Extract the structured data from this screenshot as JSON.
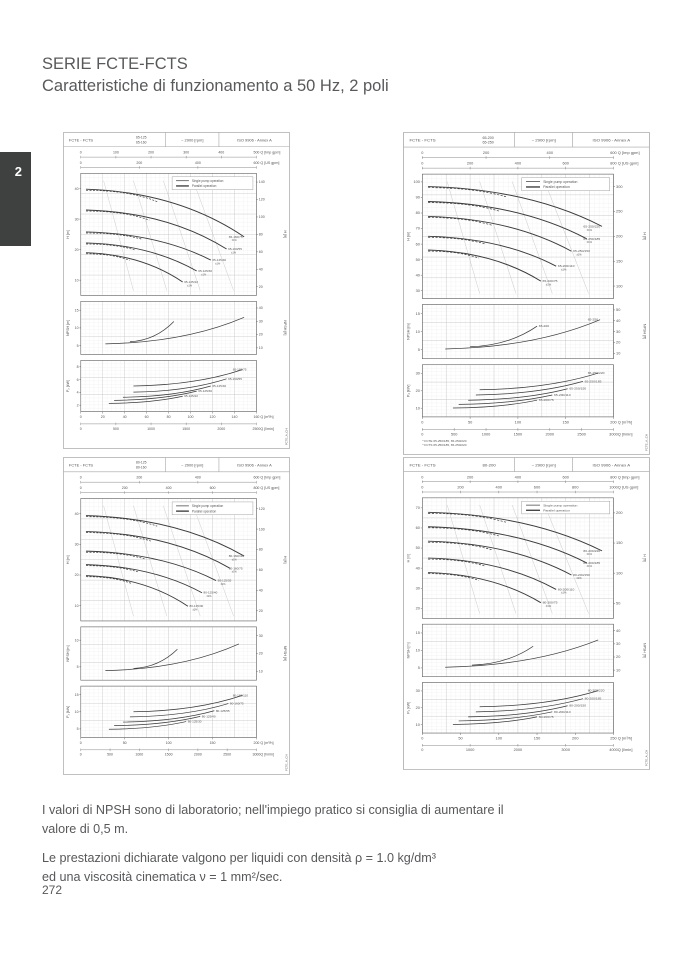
{
  "page": {
    "tab_number": "2",
    "title": "SERIE FCTE-FCTS",
    "subtitle": "Caratteristiche di funzionamento a 50 Hz, 2 poli",
    "notes": {
      "npsh": "I valori di NPSH sono di laboratorio; nell'impiego pratico si consiglia di aumentare il valore di 0,5 m.",
      "density1": "Le prestazioni dichiarate valgono per liquidi con densità ρ = 1.0 kg/dm³",
      "density2": "ed una viscosità cinematica ν = 1 mm²/sec."
    },
    "page_number": "272"
  },
  "charts": [
    {
      "header": {
        "series": "FCTE - FCTS",
        "sizes": [
          "65-125",
          "65-160"
        ],
        "speed": "~ 2900 [rpm]",
        "standard": "ISO 9906 - Annex A"
      },
      "legend": [
        "Single pump operation",
        "Parallel operation"
      ],
      "top_axes": [
        {
          "label": "Q [Imp gpm]",
          "ticks": [
            "0",
            "100",
            "200",
            "300",
            "400",
            "500"
          ]
        },
        {
          "label": "Q [US gpm]",
          "ticks": [
            "0",
            "200",
            "400",
            "600"
          ]
        }
      ],
      "head_panel": {
        "left_label": "H [m]",
        "left_ticks": [
          "40",
          "30",
          "20",
          "10"
        ],
        "right_label": "H [ft]",
        "right_ticks": [
          "140",
          "120",
          "100",
          "80",
          "60",
          "40",
          "20"
        ],
        "tolerance": "±1%",
        "curves": [
          {
            "x0": 0.03,
            "y0": 0.13,
            "x1": 0.93,
            "y1": 0.52,
            "label": "65-160/75"
          },
          {
            "x0": 0.03,
            "y0": 0.3,
            "x1": 0.83,
            "y1": 0.62,
            "label": "65-160/55"
          },
          {
            "x0": 0.03,
            "y0": 0.48,
            "x1": 0.74,
            "y1": 0.71,
            "label": "65-125/40"
          },
          {
            "x0": 0.03,
            "y0": 0.57,
            "x1": 0.66,
            "y1": 0.8,
            "label": "65-125/30"
          },
          {
            "x0": 0.03,
            "y0": 0.65,
            "x1": 0.58,
            "y1": 0.89,
            "label": "65-125/22"
          }
        ]
      },
      "npsh_panel": {
        "left_label": "NPSH [m]",
        "left_ticks": [
          "15",
          "10",
          "5"
        ],
        "right_label": "NPSH [ft]",
        "right_ticks": [
          "40",
          "30",
          "20",
          "10"
        ],
        "curves": [
          {
            "x0": 0.14,
            "y0": 0.8,
            "x1": 0.93,
            "y1": 0.3,
            "label": ""
          },
          {
            "x0": 0.28,
            "y0": 0.76,
            "x1": 0.53,
            "y1": 0.38,
            "label": ""
          }
        ]
      },
      "power_panel": {
        "left_label": "P₂ [kW]",
        "left_ticks": [
          "8",
          "6",
          "4",
          "2"
        ],
        "curves": [
          {
            "x0": 0.3,
            "y0": 0.5,
            "x1": 0.92,
            "y1": 0.18,
            "label": "65-160/75"
          },
          {
            "x0": 0.3,
            "y0": 0.62,
            "x1": 0.83,
            "y1": 0.36,
            "label": "65-160/55"
          },
          {
            "x0": 0.24,
            "y0": 0.72,
            "x1": 0.74,
            "y1": 0.5,
            "label": "65-125/40"
          },
          {
            "x0": 0.19,
            "y0": 0.78,
            "x1": 0.66,
            "y1": 0.6,
            "label": "65-125/30"
          },
          {
            "x0": 0.16,
            "y0": 0.84,
            "x1": 0.58,
            "y1": 0.7,
            "label": "65-125/22"
          }
        ]
      },
      "bottom_axes": [
        {
          "label": "Q [m³/h]",
          "ticks": [
            "0",
            "20",
            "40",
            "60",
            "80",
            "100",
            "120",
            "140",
            "160"
          ]
        },
        {
          "label": "Q [l/min]",
          "ticks": [
            "0",
            "500",
            "1000",
            "1500",
            "2000",
            "2500"
          ]
        }
      ],
      "footnotes": [],
      "side_code": "FCTE_A_CH"
    },
    {
      "header": {
        "series": "FCTE - FCTS",
        "sizes": [
          "65-200",
          "65-250"
        ],
        "speed": "~ 2900 [rpm]",
        "standard": "ISO 9906 - Annex A"
      },
      "legend": [
        "Single pump operation",
        "Parallel operation"
      ],
      "top_axes": [
        {
          "label": "Q [Imp gpm]",
          "ticks": [
            "0",
            "200",
            "400",
            "600"
          ]
        },
        {
          "label": "Q [US gpm]",
          "ticks": [
            "0",
            "200",
            "400",
            "600",
            "800"
          ]
        }
      ],
      "head_panel": {
        "left_label": "H [m]",
        "left_ticks": [
          "100",
          "90",
          "80",
          "70",
          "60",
          "50",
          "40",
          "30"
        ],
        "right_label": "H [ft]",
        "right_ticks": [
          "300",
          "250",
          "200",
          "150",
          "100"
        ],
        "tolerance": "±1%",
        "curves": [
          {
            "x0": 0.03,
            "y0": 0.1,
            "x1": 0.94,
            "y1": 0.42,
            "label": "65-250/220"
          },
          {
            "x0": 0.03,
            "y0": 0.22,
            "x1": 0.86,
            "y1": 0.52,
            "label": "65-250/185"
          },
          {
            "x0": 0.03,
            "y0": 0.34,
            "x1": 0.78,
            "y1": 0.62,
            "label": "65-250/150"
          },
          {
            "x0": 0.03,
            "y0": 0.5,
            "x1": 0.7,
            "y1": 0.74,
            "label": "65-200/110"
          },
          {
            "x0": 0.03,
            "y0": 0.61,
            "x1": 0.62,
            "y1": 0.86,
            "label": "65-200/75"
          }
        ]
      },
      "npsh_panel": {
        "left_label": "NPSH [m]",
        "left_ticks": [
          "15",
          "10",
          "5"
        ],
        "right_label": "NPSH [ft]",
        "right_ticks": [
          "50",
          "40",
          "30",
          "20",
          "10"
        ],
        "curves": [
          {
            "x0": 0.12,
            "y0": 0.82,
            "x1": 0.93,
            "y1": 0.28,
            "label": "65-250"
          },
          {
            "x0": 0.25,
            "y0": 0.78,
            "x1": 0.6,
            "y1": 0.4,
            "label": "65-200"
          }
        ]
      },
      "power_panel": {
        "left_label": "P₂ [kW]",
        "left_ticks": [
          "30",
          "20",
          "10"
        ],
        "curves": [
          {
            "x0": 0.3,
            "y0": 0.48,
            "x1": 0.92,
            "y1": 0.16,
            "label": "65-250/220"
          },
          {
            "x0": 0.28,
            "y0": 0.58,
            "x1": 0.84,
            "y1": 0.32,
            "label": "65-250/185"
          },
          {
            "x0": 0.24,
            "y0": 0.68,
            "x1": 0.76,
            "y1": 0.46,
            "label": "65-250/150"
          },
          {
            "x0": 0.19,
            "y0": 0.76,
            "x1": 0.68,
            "y1": 0.58,
            "label": "65-200/110"
          },
          {
            "x0": 0.16,
            "y0": 0.83,
            "x1": 0.6,
            "y1": 0.68,
            "label": "65-200/75"
          }
        ]
      },
      "bottom_axes": [
        {
          "label": "Q [m³/h]",
          "ticks": [
            "0",
            "50",
            "100",
            "150",
            "200"
          ]
        },
        {
          "label": "Q [l/min]",
          "ticks": [
            "0",
            "500",
            "1000",
            "1500",
            "2000",
            "2500",
            "3000"
          ]
        }
      ],
      "footnotes": [
        "* FCTE 65-250/185, 65-250/220",
        "* FCTS 65-250/185, 65-250/220"
      ],
      "side_code": "FCTE_A_CH"
    },
    {
      "header": {
        "series": "FCTE - FCTS",
        "sizes": [
          "80-125",
          "80-160"
        ],
        "speed": "~ 2900 [rpm]",
        "standard": "ISO 9906 - Annex A"
      },
      "legend": [
        "Single pump operation",
        "Parallel operation"
      ],
      "top_axes": [
        {
          "label": "Q [Imp gpm]",
          "ticks": [
            "0",
            "200",
            "400",
            "600"
          ]
        },
        {
          "label": "Q [US gpm]",
          "ticks": [
            "0",
            "200",
            "400",
            "600",
            "800"
          ]
        }
      ],
      "head_panel": {
        "left_label": "H [m]",
        "left_ticks": [
          "40",
          "30",
          "20",
          "10"
        ],
        "right_label": "H [ft]",
        "right_ticks": [
          "120",
          "100",
          "80",
          "60",
          "40",
          "20"
        ],
        "tolerance": "±1%",
        "curves": [
          {
            "x0": 0.03,
            "y0": 0.14,
            "x1": 0.93,
            "y1": 0.47,
            "label": "80-160/110"
          },
          {
            "x0": 0.03,
            "y0": 0.27,
            "x1": 0.85,
            "y1": 0.57,
            "label": "80-160/75"
          },
          {
            "x0": 0.03,
            "y0": 0.43,
            "x1": 0.77,
            "y1": 0.67,
            "label": "80-125/55"
          },
          {
            "x0": 0.03,
            "y0": 0.54,
            "x1": 0.69,
            "y1": 0.77,
            "label": "80-125/40"
          },
          {
            "x0": 0.03,
            "y0": 0.63,
            "x1": 0.61,
            "y1": 0.88,
            "label": "80-125/30"
          }
        ]
      },
      "npsh_panel": {
        "left_label": "NPSH [m]",
        "left_ticks": [
          "10",
          "5"
        ],
        "right_label": "NPSH [ft]",
        "right_ticks": [
          "30",
          "20",
          "10"
        ],
        "curves": [
          {
            "x0": 0.14,
            "y0": 0.82,
            "x1": 0.9,
            "y1": 0.32,
            "label": ""
          },
          {
            "x0": 0.3,
            "y0": 0.78,
            "x1": 0.55,
            "y1": 0.42,
            "label": ""
          }
        ]
      },
      "power_panel": {
        "left_label": "P₂ [kW]",
        "left_ticks": [
          "15",
          "10",
          "5"
        ],
        "curves": [
          {
            "x0": 0.3,
            "y0": 0.5,
            "x1": 0.92,
            "y1": 0.18,
            "label": "80-160/110"
          },
          {
            "x0": 0.28,
            "y0": 0.6,
            "x1": 0.84,
            "y1": 0.34,
            "label": "80-160/75"
          },
          {
            "x0": 0.24,
            "y0": 0.7,
            "x1": 0.76,
            "y1": 0.48,
            "label": "80-125/55"
          },
          {
            "x0": 0.19,
            "y0": 0.77,
            "x1": 0.68,
            "y1": 0.59,
            "label": "80-125/40"
          },
          {
            "x0": 0.16,
            "y0": 0.84,
            "x1": 0.6,
            "y1": 0.69,
            "label": "80-125/30"
          }
        ]
      },
      "bottom_axes": [
        {
          "label": "Q [m³/h]",
          "ticks": [
            "0",
            "50",
            "100",
            "150",
            "200"
          ]
        },
        {
          "label": "Q [l/min]",
          "ticks": [
            "0",
            "500",
            "1000",
            "1500",
            "2000",
            "2500",
            "3000"
          ]
        }
      ],
      "footnotes": [],
      "side_code": "FCTE_A_CH"
    },
    {
      "header": {
        "series": "FCTE - FCTS",
        "sizes": [
          "80-200"
        ],
        "speed": "~ 2900 [rpm]",
        "standard": "ISO 9906 - Annex A"
      },
      "legend": [
        "Single pump operation",
        "Parallel operation"
      ],
      "top_axes": [
        {
          "label": "Q [Imp gpm]",
          "ticks": [
            "0",
            "200",
            "400",
            "600",
            "800"
          ]
        },
        {
          "label": "Q [US gpm]",
          "ticks": [
            "0",
            "200",
            "400",
            "600",
            "800",
            "1000"
          ]
        }
      ],
      "head_panel": {
        "left_label": "H [m]",
        "left_ticks": [
          "70",
          "60",
          "50",
          "40",
          "30",
          "20"
        ],
        "right_label": "H [ft]",
        "right_ticks": [
          "200",
          "150",
          "100",
          "50"
        ],
        "tolerance": "±1%",
        "curves": [
          {
            "x0": 0.03,
            "y0": 0.12,
            "x1": 0.94,
            "y1": 0.44,
            "label": "80-200/220"
          },
          {
            "x0": 0.03,
            "y0": 0.24,
            "x1": 0.86,
            "y1": 0.54,
            "label": "80-200/185"
          },
          {
            "x0": 0.03,
            "y0": 0.36,
            "x1": 0.78,
            "y1": 0.64,
            "label": "80-200/150"
          },
          {
            "x0": 0.03,
            "y0": 0.5,
            "x1": 0.7,
            "y1": 0.76,
            "label": "80-200/110"
          },
          {
            "x0": 0.03,
            "y0": 0.62,
            "x1": 0.62,
            "y1": 0.87,
            "label": "80-200/75"
          }
        ]
      },
      "npsh_panel": {
        "left_label": "NPSH [m]",
        "left_ticks": [
          "15",
          "10",
          "5"
        ],
        "right_label": "NPSH [ft]",
        "right_ticks": [
          "40",
          "30",
          "20",
          "10"
        ],
        "curves": [
          {
            "x0": 0.12,
            "y0": 0.82,
            "x1": 0.92,
            "y1": 0.3,
            "label": ""
          },
          {
            "x0": 0.26,
            "y0": 0.78,
            "x1": 0.58,
            "y1": 0.42,
            "label": ""
          }
        ]
      },
      "power_panel": {
        "left_label": "P₂ [kW]",
        "left_ticks": [
          "30",
          "20",
          "10"
        ],
        "curves": [
          {
            "x0": 0.3,
            "y0": 0.48,
            "x1": 0.92,
            "y1": 0.16,
            "label": "80-200/220"
          },
          {
            "x0": 0.28,
            "y0": 0.58,
            "x1": 0.84,
            "y1": 0.32,
            "label": "80-200/185"
          },
          {
            "x0": 0.24,
            "y0": 0.68,
            "x1": 0.76,
            "y1": 0.46,
            "label": "80-200/150"
          },
          {
            "x0": 0.19,
            "y0": 0.76,
            "x1": 0.68,
            "y1": 0.58,
            "label": "80-200/110"
          },
          {
            "x0": 0.16,
            "y0": 0.83,
            "x1": 0.6,
            "y1": 0.68,
            "label": "80-200/75"
          }
        ]
      },
      "bottom_axes": [
        {
          "label": "Q [m³/h]",
          "ticks": [
            "0",
            "50",
            "100",
            "150",
            "200",
            "250"
          ]
        },
        {
          "label": "Q [l/min]",
          "ticks": [
            "0",
            "1000",
            "2000",
            "3000",
            "4000"
          ]
        }
      ],
      "footnotes": [],
      "side_code": "FCTE_A_CH"
    }
  ]
}
